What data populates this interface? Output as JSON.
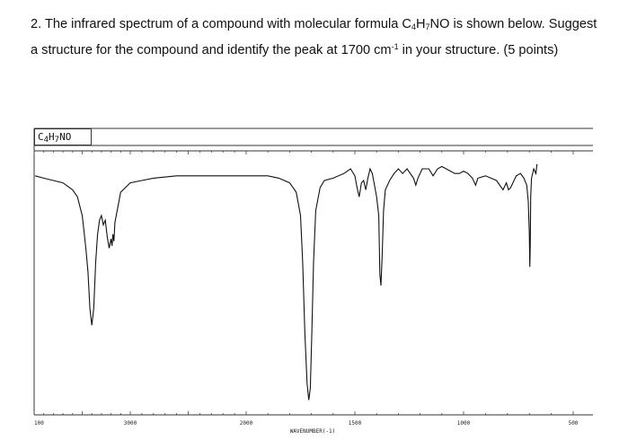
{
  "question": {
    "text_prefix": "2. The infrared spectrum of a compound with molecular formula C",
    "sub1": "4",
    "mid1": "H",
    "sub2": "7",
    "text_mid": "NO is shown below. Suggest a structure for the compound and identify the peak at 1700 cm",
    "sup": "-1",
    "text_suffix": " in your structure. (5 points)"
  },
  "spectrum_label": {
    "c": "C",
    "s1": "4",
    "h": "H",
    "s2": "7",
    "rest": "NO"
  },
  "chart_data": {
    "type": "line",
    "xlabel": "WAVENUMBER(-1)",
    "x_ticks": [
      "100",
      "3000",
      "2000",
      "1500",
      "1000",
      "500"
    ],
    "x_reversed": true,
    "ylabel": "",
    "series": [
      {
        "points": [
          [
            3990,
            97
          ],
          [
            3900,
            96
          ],
          [
            3800,
            95
          ],
          [
            3700,
            94
          ],
          [
            3600,
            91
          ],
          [
            3550,
            88
          ],
          [
            3500,
            80
          ],
          [
            3480,
            73
          ],
          [
            3460,
            65
          ],
          [
            3440,
            56
          ],
          [
            3420,
            40
          ],
          [
            3400,
            33
          ],
          [
            3380,
            40
          ],
          [
            3360,
            60
          ],
          [
            3340,
            72
          ],
          [
            3320,
            78
          ],
          [
            3300,
            80
          ],
          [
            3280,
            76
          ],
          [
            3260,
            78
          ],
          [
            3240,
            71
          ],
          [
            3220,
            66
          ],
          [
            3200,
            70
          ],
          [
            3190,
            67
          ],
          [
            3180,
            72
          ],
          [
            3170,
            69
          ],
          [
            3160,
            77
          ],
          [
            3150,
            79
          ],
          [
            3100,
            90
          ],
          [
            3000,
            94
          ],
          [
            2900,
            95
          ],
          [
            2800,
            96
          ],
          [
            2600,
            97
          ],
          [
            2400,
            97
          ],
          [
            2200,
            97
          ],
          [
            2000,
            97
          ],
          [
            1900,
            97
          ],
          [
            1850,
            96
          ],
          [
            1800,
            94
          ],
          [
            1770,
            90
          ],
          [
            1750,
            80
          ],
          [
            1740,
            60
          ],
          [
            1730,
            30
          ],
          [
            1720,
            8
          ],
          [
            1712,
            1
          ],
          [
            1705,
            6
          ],
          [
            1698,
            30
          ],
          [
            1690,
            60
          ],
          [
            1680,
            82
          ],
          [
            1660,
            92
          ],
          [
            1640,
            95
          ],
          [
            1600,
            96
          ],
          [
            1550,
            98
          ],
          [
            1520,
            100
          ],
          [
            1500,
            97
          ],
          [
            1490,
            92
          ],
          [
            1480,
            88
          ],
          [
            1470,
            94
          ],
          [
            1460,
            95
          ],
          [
            1450,
            91
          ],
          [
            1440,
            96
          ],
          [
            1430,
            100
          ],
          [
            1420,
            98
          ],
          [
            1410,
            93
          ],
          [
            1400,
            88
          ],
          [
            1390,
            80
          ],
          [
            1385,
            55
          ],
          [
            1380,
            50
          ],
          [
            1375,
            62
          ],
          [
            1368,
            82
          ],
          [
            1360,
            91
          ],
          [
            1340,
            95
          ],
          [
            1320,
            98
          ],
          [
            1300,
            100
          ],
          [
            1280,
            98
          ],
          [
            1260,
            100
          ],
          [
            1230,
            96
          ],
          [
            1220,
            93
          ],
          [
            1210,
            96
          ],
          [
            1190,
            100
          ],
          [
            1160,
            100
          ],
          [
            1140,
            97
          ],
          [
            1120,
            100
          ],
          [
            1100,
            101
          ],
          [
            1080,
            100
          ],
          [
            1040,
            98
          ],
          [
            1020,
            98
          ],
          [
            1000,
            99
          ],
          [
            980,
            98
          ],
          [
            960,
            96
          ],
          [
            945,
            93
          ],
          [
            935,
            96
          ],
          [
            900,
            97
          ],
          [
            850,
            95
          ],
          [
            820,
            91
          ],
          [
            805,
            94
          ],
          [
            795,
            91
          ],
          [
            785,
            92
          ],
          [
            775,
            94
          ],
          [
            760,
            97
          ],
          [
            740,
            98
          ],
          [
            725,
            96
          ],
          [
            712,
            93
          ],
          [
            705,
            86
          ],
          [
            700,
            72
          ],
          [
            698,
            58
          ],
          [
            696,
            67
          ],
          [
            694,
            88
          ],
          [
            690,
            96
          ],
          [
            680,
            100
          ],
          [
            670,
            98
          ],
          [
            665,
            102
          ]
        ]
      }
    ]
  }
}
